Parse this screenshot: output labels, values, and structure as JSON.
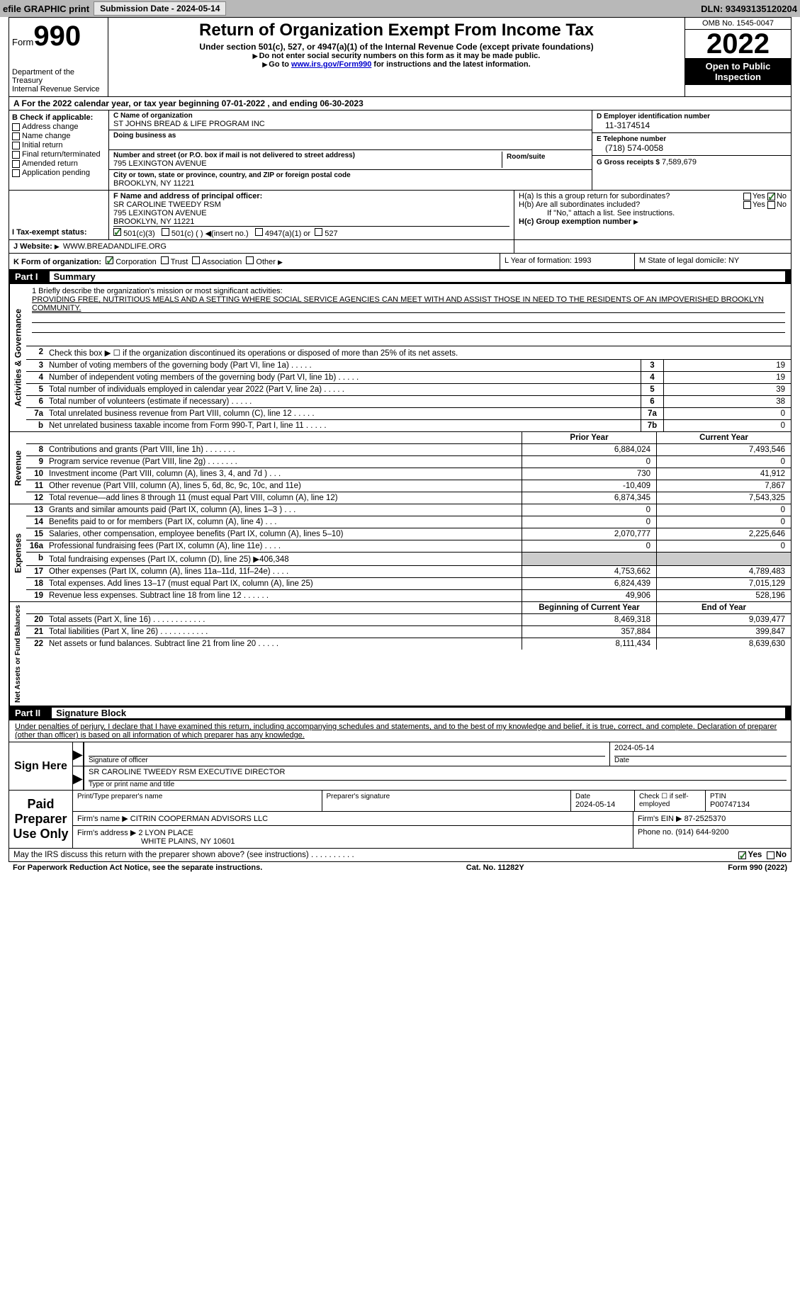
{
  "topbar": {
    "efile": "efile GRAPHIC print",
    "submission": "Submission Date - 2024-05-14",
    "dln": "DLN: 93493135120204"
  },
  "header": {
    "form_word": "Form",
    "form_num": "990",
    "title": "Return of Organization Exempt From Income Tax",
    "sub1": "Under section 501(c), 527, or 4947(a)(1) of the Internal Revenue Code (except private foundations)",
    "sub2_pre": "Do not enter social security numbers on this form as it may be made public.",
    "sub3_pre": "Go to ",
    "sub3_link": "www.irs.gov/Form990",
    "sub3_post": " for instructions and the latest information.",
    "dept": "Department of the Treasury\nInternal Revenue Service",
    "omb": "OMB No. 1545-0047",
    "year": "2022",
    "open": "Open to Public Inspection"
  },
  "rowA": "A For the 2022 calendar year, or tax year beginning 07-01-2022   , and ending 06-30-2023",
  "boxB": {
    "label": "B Check if applicable:",
    "addr": "Address change",
    "name": "Name change",
    "initial": "Initial return",
    "final": "Final return/terminated",
    "amended": "Amended return",
    "app": "Application pending"
  },
  "boxC": {
    "name_label": "C Name of organization",
    "name_val": "ST JOHNS BREAD & LIFE PROGRAM INC",
    "dba_label": "Doing business as",
    "dba_val": "",
    "street_label": "Number and street (or P.O. box if mail is not delivered to street address)",
    "room_label": "Room/suite",
    "street_val": "795 LEXINGTON AVENUE",
    "city_label": "City or town, state or province, country, and ZIP or foreign postal code",
    "city_val": "BROOKLYN, NY  11221"
  },
  "boxD": {
    "label": "D Employer identification number",
    "val": "11-3174514"
  },
  "boxE": {
    "label": "E Telephone number",
    "val": "(718) 574-0058"
  },
  "boxG": {
    "label": "G Gross receipts $",
    "val": "7,589,679"
  },
  "boxF": {
    "label": "F Name and address of principal officer:",
    "name": "SR CAROLINE TWEEDY RSM",
    "addr1": "795 LEXINGTON AVENUE",
    "addr2": "BROOKLYN, NY  11221"
  },
  "boxH": {
    "a_label": "H(a)  Is this a group return for subordinates?",
    "b_label": "H(b)  Are all subordinates included?",
    "b_note": "If \"No,\" attach a list. See instructions.",
    "c_label": "H(c)  Group exemption number",
    "yes": "Yes",
    "no": "No"
  },
  "boxI": {
    "label": "I    Tax-exempt status:",
    "c3": "501(c)(3)",
    "c_other": "501(c) (  ) ◀(insert no.)",
    "a1": "4947(a)(1) or",
    "s527": "527"
  },
  "boxJ": {
    "label": "J    Website:",
    "val": "WWW.BREADANDLIFE.ORG"
  },
  "boxK": {
    "label": "K Form of organization:",
    "corp": "Corporation",
    "trust": "Trust",
    "assoc": "Association",
    "other": "Other"
  },
  "boxL": {
    "label": "L Year of formation:",
    "val": "1993"
  },
  "boxM": {
    "label": "M State of legal domicile:",
    "val": "NY"
  },
  "part1": {
    "num": "Part I",
    "title": "Summary"
  },
  "mission": {
    "label": "1   Briefly describe the organization's mission or most significant activities:",
    "text": "PROVIDING FREE, NUTRITIOUS MEALS AND A SETTING WHERE SOCIAL SERVICE AGENCIES CAN MEET WITH AND ASSIST THOSE IN NEED TO THE RESIDENTS OF AN IMPOVERISHED BROOKLYN COMMUNITY."
  },
  "line2": "Check this box ▶ ☐ if the organization discontinued its operations or disposed of more than 25% of its net assets.",
  "gov_rows": [
    {
      "n": "3",
      "desc": "Number of voting members of the governing body (Part VI, line 1a)",
      "box": "3",
      "val": "19"
    },
    {
      "n": "4",
      "desc": "Number of independent voting members of the governing body (Part VI, line 1b)",
      "box": "4",
      "val": "19"
    },
    {
      "n": "5",
      "desc": "Total number of individuals employed in calendar year 2022 (Part V, line 2a)",
      "box": "5",
      "val": "39"
    },
    {
      "n": "6",
      "desc": "Total number of volunteers (estimate if necessary)",
      "box": "6",
      "val": "38"
    },
    {
      "n": "7a",
      "desc": "Total unrelated business revenue from Part VIII, column (C), line 12",
      "box": "7a",
      "val": "0"
    },
    {
      "n": "b",
      "desc": "Net unrelated business taxable income from Form 990-T, Part I, line 11",
      "box": "7b",
      "val": "0"
    }
  ],
  "fin_headers": {
    "prior": "Prior Year",
    "curr": "Current Year",
    "boy": "Beginning of Current Year",
    "eoy": "End of Year"
  },
  "revenue": [
    {
      "n": "8",
      "desc": "Contributions and grants (Part VIII, line 1h)   .   .   .   .   .   .   .",
      "prior": "6,884,024",
      "curr": "7,493,546"
    },
    {
      "n": "9",
      "desc": "Program service revenue (Part VIII, line 2g)   .   .   .   .   .   .   .",
      "prior": "0",
      "curr": "0"
    },
    {
      "n": "10",
      "desc": "Investment income (Part VIII, column (A), lines 3, 4, and 7d )   .   .   .",
      "prior": "730",
      "curr": "41,912"
    },
    {
      "n": "11",
      "desc": "Other revenue (Part VIII, column (A), lines 5, 6d, 8c, 9c, 10c, and 11e)",
      "prior": "-10,409",
      "curr": "7,867"
    },
    {
      "n": "12",
      "desc": "Total revenue—add lines 8 through 11 (must equal Part VIII, column (A), line 12)",
      "prior": "6,874,345",
      "curr": "7,543,325"
    }
  ],
  "expenses": [
    {
      "n": "13",
      "desc": "Grants and similar amounts paid (Part IX, column (A), lines 1–3 )   .   .   .",
      "prior": "0",
      "curr": "0"
    },
    {
      "n": "14",
      "desc": "Benefits paid to or for members (Part IX, column (A), line 4)   .   .   .",
      "prior": "0",
      "curr": "0"
    },
    {
      "n": "15",
      "desc": "Salaries, other compensation, employee benefits (Part IX, column (A), lines 5–10)",
      "prior": "2,070,777",
      "curr": "2,225,646"
    },
    {
      "n": "16a",
      "desc": "Professional fundraising fees (Part IX, column (A), line 11e)   .   .   .   .",
      "prior": "0",
      "curr": "0"
    },
    {
      "n": "b",
      "desc": "Total fundraising expenses (Part IX, column (D), line 25) ▶406,348",
      "prior": "",
      "curr": "",
      "shaded": true
    },
    {
      "n": "17",
      "desc": "Other expenses (Part IX, column (A), lines 11a–11d, 11f–24e)   .   .   .   .",
      "prior": "4,753,662",
      "curr": "4,789,483"
    },
    {
      "n": "18",
      "desc": "Total expenses. Add lines 13–17 (must equal Part IX, column (A), line 25)",
      "prior": "6,824,439",
      "curr": "7,015,129"
    },
    {
      "n": "19",
      "desc": "Revenue less expenses. Subtract line 18 from line 12   .   .   .   .   .   .",
      "prior": "49,906",
      "curr": "528,196"
    }
  ],
  "netassets": [
    {
      "n": "20",
      "desc": "Total assets (Part X, line 16)   .   .   .   .   .   .   .   .   .   .   .   .",
      "prior": "8,469,318",
      "curr": "9,039,477"
    },
    {
      "n": "21",
      "desc": "Total liabilities (Part X, line 26)   .   .   .   .   .   .   .   .   .   .   .",
      "prior": "357,884",
      "curr": "399,847"
    },
    {
      "n": "22",
      "desc": "Net assets or fund balances. Subtract line 21 from line 20   .   .   .   .   .",
      "prior": "8,111,434",
      "curr": "8,639,630"
    }
  ],
  "vert": {
    "gov": "Activities & Governance",
    "rev": "Revenue",
    "exp": "Expenses",
    "net": "Net Assets or Fund Balances"
  },
  "part2": {
    "num": "Part II",
    "title": "Signature Block"
  },
  "sig": {
    "intro": "Under penalties of perjury, I declare that I have examined this return, including accompanying schedules and statements, and to the best of my knowledge and belief, it is true, correct, and complete. Declaration of preparer (other than officer) is based on all information of which preparer has any knowledge.",
    "sign_here": "Sign Here",
    "sig_officer": "Signature of officer",
    "date": "Date",
    "date_val": "2024-05-14",
    "name_title": "SR CAROLINE TWEEDY RSM  EXECUTIVE DIRECTOR",
    "name_label": "Type or print name and title"
  },
  "prep": {
    "label": "Paid Preparer Use Only",
    "print_label": "Print/Type preparer's name",
    "print_val": "",
    "sig_label": "Preparer's signature",
    "date_label": "Date",
    "date_val": "2024-05-14",
    "check_label": "Check ☐ if self-employed",
    "ptin_label": "PTIN",
    "ptin_val": "P00747134",
    "firm_name_label": "Firm's name   ▶",
    "firm_name_val": "CITRIN COOPERMAN ADVISORS LLC",
    "firm_ein_label": "Firm's EIN ▶",
    "firm_ein_val": "87-2525370",
    "firm_addr_label": "Firm's address ▶",
    "firm_addr_val1": "2 LYON PLACE",
    "firm_addr_val2": "WHITE PLAINS, NY  10601",
    "phone_label": "Phone no.",
    "phone_val": "(914) 644-9200"
  },
  "discuss": {
    "text": "May the IRS discuss this return with the preparer shown above? (see instructions)   .   .   .   .   .   .   .   .   .   .",
    "yes": "Yes",
    "no": "No"
  },
  "footer": {
    "left": "For Paperwork Reduction Act Notice, see the separate instructions.",
    "mid": "Cat. No. 11282Y",
    "right": "Form 990 (2022)"
  }
}
